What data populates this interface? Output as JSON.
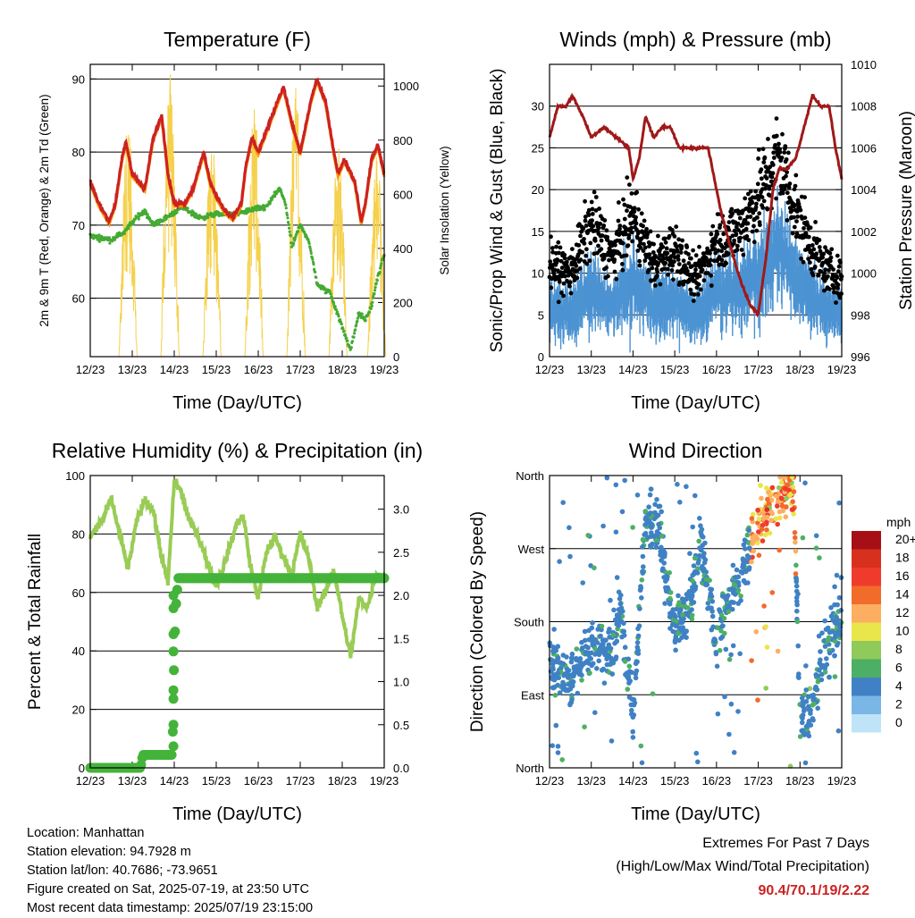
{
  "time_ticks": [
    "12/23",
    "13/23",
    "14/23",
    "15/23",
    "16/23",
    "17/23",
    "18/23",
    "19/23"
  ],
  "x_axis_label": "Time (Day/UTC)",
  "colors": {
    "temp_red": "#cc2222",
    "temp_orange": "#ff9900",
    "dewpoint_green": "#44aa33",
    "solar_yellow": "#f5d04a",
    "wind_blue": "#4c93d2",
    "gust_black": "#000000",
    "pressure_maroon": "#a01818",
    "rh_lightgreen": "#99cc55",
    "precip_green": "#44b33a",
    "extremes_red": "#cc2222"
  },
  "speed_scale": {
    "unit": "mph",
    "labels": [
      "20+",
      "18",
      "16",
      "14",
      "12",
      "10",
      "8",
      "6",
      "4",
      "2",
      "0"
    ],
    "colors": [
      "#a50f15",
      "#d7301f",
      "#ef3b2c",
      "#f16b2b",
      "#fdae61",
      "#e8e64a",
      "#8fca5a",
      "#4daf65",
      "#3f81c4",
      "#7ab6e6",
      "#bfe4f7"
    ]
  },
  "footer": {
    "location": "Location: Manhattan",
    "elevation": "Station elevation: 94.7928 m",
    "latlon": "Station lat/lon: 40.7686; -73.9651",
    "created": "Figure created on Sat, 2025-07-19, at 23:50 UTC",
    "latest": "Most recent data timestamp: 2025/07/19 23:15:00",
    "extremes_title": "Extremes For Past 7 Days",
    "extremes_subtitle": "(High/Low/Max Wind/Total Precipitation)",
    "extremes_values": "90.4/70.1/19/2.22"
  },
  "chart_data": [
    {
      "type": "line",
      "title": "Temperature (F)",
      "xlabel": "Time (Day/UTC)",
      "ylabel": "2m & 9m T (Red, Orange) & 2m Td (Green)",
      "ylabel_right": "Solar Insolation (Yellow)",
      "x_ticks": [
        "12/23",
        "13/23",
        "14/23",
        "15/23",
        "16/23",
        "17/23",
        "18/23",
        "19/23"
      ],
      "xlim": [
        0,
        7
      ],
      "ylim": [
        52,
        92
      ],
      "yticks": [
        60,
        70,
        80,
        90
      ],
      "ylim_right": [
        0,
        1080
      ],
      "yticks_right": [
        0,
        200,
        400,
        600,
        800,
        1000
      ],
      "grid": true,
      "series": [
        {
          "color": "red",
          "axis": "left",
          "x": [
            0,
            0.2,
            0.45,
            0.6,
            0.75,
            0.85,
            1.0,
            1.3,
            1.5,
            1.7,
            1.85,
            2.0,
            2.25,
            2.45,
            2.7,
            2.85,
            3.0,
            3.2,
            3.4,
            3.6,
            3.7,
            3.85,
            4.0,
            4.4,
            4.6,
            4.8,
            5.0,
            5.25,
            5.4,
            5.6,
            5.8,
            5.9,
            6.05,
            6.3,
            6.45,
            6.55,
            6.7,
            6.85,
            7.0
          ],
          "y": [
            76,
            73,
            70.5,
            73,
            79,
            81.5,
            77,
            75,
            82,
            85,
            77,
            73,
            73,
            75,
            80,
            76,
            74,
            72,
            71,
            73,
            78,
            82,
            80,
            86,
            89,
            84,
            80,
            87,
            90,
            87,
            80,
            77,
            79,
            76,
            70.5,
            73,
            79,
            81,
            77
          ]
        },
        {
          "color": "green",
          "axis": "left",
          "x": [
            0,
            0.5,
            0.8,
            1.1,
            1.3,
            1.5,
            1.8,
            2.2,
            2.6,
            3.0,
            3.4,
            3.8,
            4.2,
            4.5,
            4.65,
            4.8,
            5.0,
            5.2,
            5.4,
            5.6,
            5.7,
            6.0,
            6.2,
            6.4,
            6.55,
            6.7,
            6.85,
            7.0
          ],
          "y": [
            68.5,
            68,
            69,
            71,
            72,
            70,
            71,
            72.5,
            71,
            71.5,
            71.5,
            72,
            72.5,
            75,
            73,
            67,
            70,
            68,
            62,
            61,
            61,
            56,
            53,
            58,
            57,
            59,
            63,
            66
          ]
        },
        {
          "color": "yellow",
          "axis": "right",
          "kind": "diurnal",
          "peaks": [
            {
              "x": 1.0,
              "y": 900
            },
            {
              "x": 2.0,
              "y": 1050
            },
            {
              "x": 3.0,
              "y": 800
            },
            {
              "x": 4.0,
              "y": 950
            },
            {
              "x": 5.0,
              "y": 1000
            },
            {
              "x": 6.0,
              "y": 800
            },
            {
              "x": 6.92,
              "y": 750
            }
          ]
        }
      ]
    },
    {
      "type": "line",
      "title": "Winds (mph) & Pressure (mb)",
      "xlabel": "Time (Day/UTC)",
      "ylabel": "Sonic/Prop Wind & Gust (Blue, Black)",
      "ylabel_right": "Station Pressure (Maroon)",
      "x_ticks": [
        "12/23",
        "13/23",
        "14/23",
        "15/23",
        "16/23",
        "17/23",
        "18/23",
        "19/23"
      ],
      "xlim": [
        0,
        7
      ],
      "ylim": [
        0,
        35
      ],
      "yticks": [
        0,
        5,
        10,
        15,
        20,
        25,
        30
      ],
      "ylim_right": [
        996,
        1010
      ],
      "yticks_right": [
        996,
        998,
        1000,
        1002,
        1004,
        1006,
        1008,
        1010
      ],
      "grid": true,
      "series": [
        {
          "color": "maroon",
          "axis": "right",
          "x": [
            0,
            0.2,
            0.4,
            0.55,
            0.8,
            1.0,
            1.3,
            1.6,
            1.9,
            2.0,
            2.15,
            2.3,
            2.5,
            2.7,
            2.9,
            3.1,
            3.3,
            3.6,
            3.8,
            3.95,
            4.1,
            4.3,
            4.6,
            4.8,
            5.0,
            5.2,
            5.35,
            5.5,
            5.7,
            5.9,
            6.1,
            6.3,
            6.5,
            6.7,
            6.85,
            7.0
          ],
          "y": [
            1006.5,
            1008,
            1008,
            1008.5,
            1007.5,
            1006.5,
            1007,
            1006.5,
            1006,
            1004.5,
            1005.5,
            1007.5,
            1006.5,
            1007,
            1007,
            1006,
            1006,
            1006,
            1006,
            1004.5,
            1003,
            1001.5,
            999.5,
            998.5,
            998,
            1001,
            1004,
            1005,
            1005,
            1005.5,
            1007,
            1008.5,
            1008,
            1008,
            1006,
            1004.5
          ]
        },
        {
          "color": "blue",
          "axis": "left",
          "kind": "band",
          "x": [
            0,
            0.5,
            1.0,
            1.5,
            2.0,
            2.5,
            3.0,
            3.5,
            4.0,
            4.5,
            5.0,
            5.5,
            6.0,
            6.5,
            7.0
          ],
          "y": [
            6,
            5.5,
            8,
            6,
            9,
            6,
            7,
            5,
            8,
            8,
            10,
            13,
            9,
            6,
            5
          ]
        },
        {
          "color": "black",
          "axis": "left",
          "kind": "scatter",
          "x": [
            0,
            0.5,
            1.0,
            1.5,
            2.0,
            2.5,
            3.0,
            3.5,
            4.0,
            4.5,
            5.0,
            5.5,
            6.0,
            6.5,
            7.0
          ],
          "y": [
            11,
            10,
            16,
            12,
            17,
            11,
            13,
            9,
            14,
            15,
            19,
            24,
            16,
            11,
            9
          ]
        }
      ]
    },
    {
      "type": "line",
      "title": "Relative Humidity (%) & Precipitation (in)",
      "xlabel": "Time (Day/UTC)",
      "ylabel": "Percent & Total Rainfall",
      "x_ticks": [
        "12/23",
        "13/23",
        "14/23",
        "15/23",
        "16/23",
        "17/23",
        "18/23",
        "19/23"
      ],
      "xlim": [
        0,
        7
      ],
      "ylim": [
        0,
        100
      ],
      "yticks": [
        0,
        20,
        40,
        60,
        80,
        100
      ],
      "ylim_right": [
        0,
        3.39
      ],
      "yticks_right": [
        0.0,
        0.5,
        1.0,
        1.5,
        2.0,
        2.5,
        3.0
      ],
      "grid": true,
      "series": [
        {
          "color": "lightgreen",
          "axis": "left",
          "x": [
            0,
            0.3,
            0.5,
            0.7,
            0.9,
            1.1,
            1.3,
            1.5,
            1.7,
            1.85,
            2.0,
            2.15,
            2.35,
            2.55,
            2.75,
            3.0,
            3.2,
            3.5,
            3.65,
            3.8,
            4.0,
            4.2,
            4.4,
            4.6,
            4.8,
            5.0,
            5.2,
            5.4,
            5.6,
            5.8,
            6.0,
            6.2,
            6.4,
            6.6,
            6.8,
            7.0
          ],
          "y": [
            79,
            85,
            92,
            80,
            68,
            84,
            92,
            88,
            72,
            63,
            98,
            95,
            85,
            80,
            72,
            62,
            70,
            84,
            86,
            70,
            58,
            74,
            79,
            72,
            66,
            80,
            72,
            55,
            60,
            68,
            52,
            38,
            58,
            55,
            66,
            65
          ]
        },
        {
          "color": "precipgreen",
          "axis": "right",
          "x": [
            0,
            1.2,
            1.25,
            1.95,
            1.97,
            2.0,
            2.05,
            2.1,
            7.0
          ],
          "y": [
            0.0,
            0.0,
            0.15,
            0.15,
            0.5,
            1.35,
            1.95,
            2.2,
            2.2
          ]
        }
      ]
    },
    {
      "type": "scatter",
      "title": "Wind Direction",
      "xlabel": "Time (Day/UTC)",
      "ylabel": "Direction (Colored By Speed)",
      "x_ticks": [
        "12/23",
        "13/23",
        "14/23",
        "15/23",
        "16/23",
        "17/23",
        "18/23",
        "19/23"
      ],
      "xlim": [
        0,
        7
      ],
      "y_tick_labels": [
        "North",
        "East",
        "South",
        "West",
        "North"
      ],
      "ylim": [
        0,
        360
      ],
      "grid": true,
      "series": [
        {
          "kind": "direction",
          "color_by": "speed",
          "x": [
            0,
            0.5,
            1.0,
            1.5,
            1.7,
            2.0,
            2.3,
            2.6,
            3.0,
            3.4,
            3.6,
            4.0,
            4.3,
            4.6,
            4.8,
            5.0,
            5.3,
            5.6,
            5.85,
            6.0,
            6.3,
            6.6,
            6.9
          ],
          "y": [
            140,
            105,
            150,
            140,
            200,
            60,
            310,
            300,
            170,
            200,
            280,
            160,
            205,
            245,
            270,
            300,
            325,
            340,
            345,
            60,
            80,
            150,
            180
          ]
        }
      ]
    }
  ]
}
